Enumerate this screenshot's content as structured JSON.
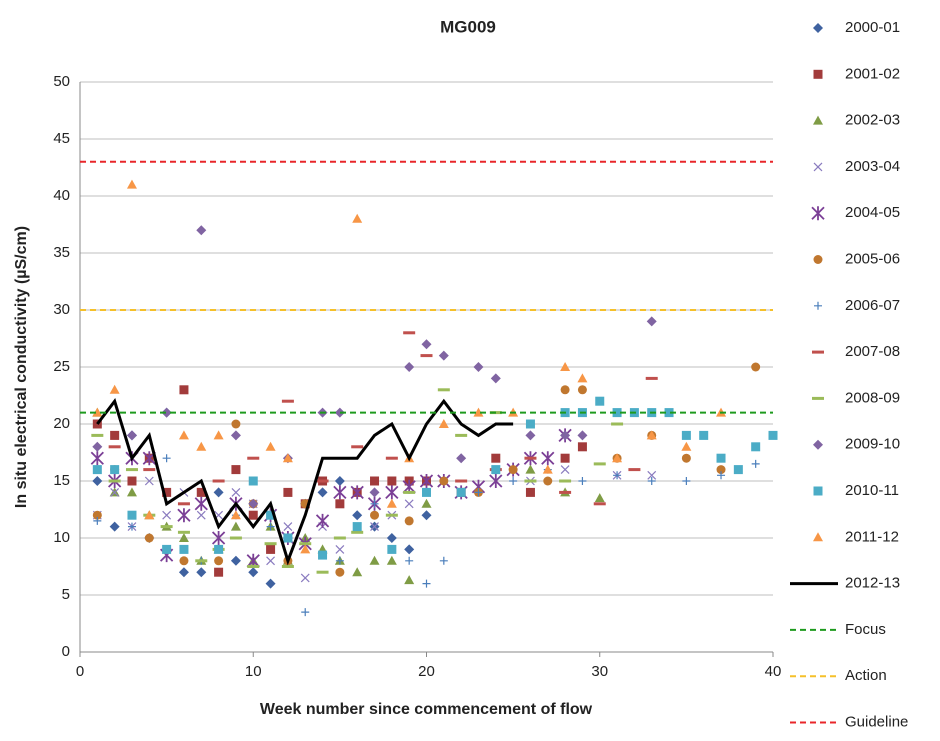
{
  "chart_data": {
    "type": "scatter",
    "title": "MG009",
    "x_label": "Week number since commencement of flow",
    "y_label": "In situ electrical conductivity (µS/cm)",
    "xlim": [
      0,
      40
    ],
    "xticks": [
      0,
      10,
      20,
      30,
      40
    ],
    "ylim": [
      0,
      50
    ],
    "yticks": [
      0,
      5,
      10,
      15,
      20,
      25,
      30,
      35,
      40,
      45,
      50
    ],
    "grid": true,
    "legend": "right",
    "series": [
      {
        "name": "2000-01",
        "marker": "diamond",
        "color": "#3f62a0",
        "x": [
          1,
          2,
          3,
          4,
          5,
          6,
          7,
          8,
          9,
          10,
          11,
          12,
          13,
          14,
          15,
          16,
          17,
          18,
          19,
          20
        ],
        "values": [
          15,
          11,
          19,
          10,
          21,
          7,
          7,
          14,
          8,
          7,
          6,
          10,
          13,
          14,
          15,
          12,
          11,
          10,
          9,
          12
        ]
      },
      {
        "name": "2001-02",
        "marker": "square",
        "color": "#a23b3b",
        "x": [
          1,
          2,
          3,
          4,
          5,
          6,
          7,
          8,
          9,
          10,
          11,
          12,
          13,
          14,
          15,
          16,
          17,
          18,
          19,
          20,
          22,
          24,
          26,
          28,
          29
        ],
        "values": [
          20,
          19,
          15,
          17,
          14,
          23,
          14,
          7,
          16,
          12,
          9,
          14,
          13,
          15,
          13,
          14,
          15,
          15,
          15,
          15,
          14,
          17,
          14,
          17,
          18
        ]
      },
      {
        "name": "2002-03",
        "marker": "triangle",
        "color": "#7f9c45",
        "x": [
          1,
          2,
          3,
          4,
          5,
          6,
          7,
          8,
          9,
          10,
          11,
          12,
          13,
          14,
          15,
          16,
          17,
          18,
          19,
          20,
          26,
          28,
          30
        ],
        "values": [
          21,
          14,
          14,
          12,
          11,
          10,
          8,
          9,
          11,
          8,
          11,
          8,
          10,
          9,
          8,
          7,
          8,
          8,
          6.3,
          13,
          16,
          14,
          13.5
        ]
      },
      {
        "name": "2003-04",
        "marker": "x",
        "color": "#8a7bbf",
        "x": [
          1,
          2,
          3,
          4,
          5,
          6,
          7,
          8,
          9,
          10,
          11,
          12,
          13,
          14,
          15,
          16,
          17,
          18,
          19,
          20,
          22,
          24,
          26,
          28,
          31,
          33
        ],
        "values": [
          12,
          14,
          11,
          15,
          12,
          14,
          12,
          12,
          14,
          13,
          8,
          11,
          6.5,
          11,
          9,
          11,
          11,
          12,
          13,
          15,
          14,
          15,
          15,
          16,
          15.5,
          15.5
        ]
      },
      {
        "name": "2004-05",
        "marker": "asterisk",
        "color": "#7b3f96",
        "x": [
          1,
          2,
          3,
          4,
          5,
          6,
          7,
          8,
          9,
          10,
          11,
          12,
          13,
          14,
          15,
          16,
          17,
          18,
          19,
          20,
          21,
          22,
          23,
          24,
          25,
          26,
          27,
          28
        ],
        "values": [
          17,
          15,
          17,
          17,
          8.5,
          12,
          13,
          10,
          13,
          8,
          12,
          10,
          9.5,
          11.5,
          14,
          14,
          13,
          14,
          14.5,
          15,
          15,
          14,
          14.5,
          15,
          16,
          17,
          17,
          19
        ]
      },
      {
        "name": "2005-06",
        "marker": "circle",
        "color": "#c0772f",
        "x": [
          1,
          2,
          4,
          6,
          8,
          9,
          10,
          12,
          13,
          15,
          17,
          19,
          21,
          23,
          25,
          27,
          28,
          29,
          31,
          33,
          35,
          37,
          39
        ],
        "values": [
          12,
          16,
          10,
          8,
          8,
          20,
          13,
          8,
          13,
          7,
          12,
          11.5,
          15,
          14,
          16,
          15,
          23,
          23,
          17,
          19,
          17,
          16,
          25
        ]
      },
      {
        "name": "2006-07",
        "marker": "plus",
        "color": "#4a7ebb",
        "x": [
          1,
          3,
          5,
          7,
          9,
          11,
          13,
          15,
          17,
          19,
          20,
          21,
          23,
          25,
          27,
          29,
          31,
          33,
          35,
          37,
          39
        ],
        "values": [
          11.5,
          11,
          17,
          8,
          12,
          11,
          3.5,
          8,
          13,
          8,
          6,
          8,
          14,
          15,
          16,
          15,
          15.5,
          15,
          15,
          15.5,
          16.5
        ]
      },
      {
        "name": "2007-08",
        "marker": "dash",
        "color": "#c0504d",
        "x": [
          2,
          4,
          6,
          8,
          10,
          12,
          14,
          16,
          18,
          19,
          20,
          22,
          24,
          26,
          28,
          30,
          32,
          33
        ],
        "values": [
          18,
          16,
          13,
          15,
          17,
          22,
          15,
          18,
          17,
          28,
          26,
          15,
          16,
          17,
          14,
          13,
          16,
          24
        ]
      },
      {
        "name": "2008-09",
        "marker": "dash",
        "color": "#9bbb59",
        "x": [
          1,
          2,
          3,
          4,
          5,
          6,
          7,
          8,
          9,
          10,
          11,
          12,
          13,
          14,
          15,
          16,
          18,
          19,
          21,
          22,
          24,
          26,
          28,
          30,
          31
        ],
        "values": [
          19,
          15,
          16,
          12,
          11,
          10.5,
          8,
          9,
          10,
          7.5,
          9.5,
          7.5,
          9.5,
          7,
          10,
          10.5,
          12,
          14,
          23,
          19,
          21,
          15,
          15,
          16.5,
          20
        ]
      },
      {
        "name": "2009-10",
        "marker": "diamond",
        "color": "#8064a2",
        "x": [
          1,
          3,
          5,
          7,
          9,
          10,
          12,
          14,
          15,
          17,
          19,
          20,
          21,
          22,
          23,
          24,
          26,
          28,
          29,
          33
        ],
        "values": [
          18,
          19,
          21,
          37,
          19,
          13,
          17,
          21,
          21,
          14,
          25,
          27,
          26,
          17,
          25,
          24,
          19,
          19,
          19,
          29
        ]
      },
      {
        "name": "2010-11",
        "marker": "square",
        "color": "#4bacc6",
        "x": [
          1,
          2,
          3,
          5,
          6,
          8,
          10,
          11,
          12,
          14,
          16,
          18,
          20,
          22,
          24,
          26,
          28,
          29,
          30,
          31,
          32,
          33,
          34,
          35,
          36,
          37,
          38,
          39,
          40
        ],
        "values": [
          16,
          16,
          12,
          9,
          9,
          9,
          15,
          12,
          10,
          8.5,
          11,
          9,
          14,
          14,
          16,
          20,
          21,
          21,
          22,
          21,
          21,
          21,
          21,
          19,
          19,
          17,
          16,
          18,
          19
        ]
      },
      {
        "name": "2011-12",
        "marker": "triangle",
        "color": "#f79646",
        "x": [
          1,
          2,
          3,
          4,
          6,
          7,
          8,
          9,
          11,
          12,
          13,
          16,
          18,
          19,
          21,
          23,
          25,
          27,
          28,
          29,
          31,
          33,
          35,
          37
        ],
        "values": [
          21,
          23,
          41,
          12,
          19,
          18,
          19,
          12,
          18,
          17,
          9,
          38,
          13,
          17,
          20,
          21,
          21,
          16,
          25,
          24,
          17,
          19,
          18,
          21
        ]
      },
      {
        "name": "2012-13",
        "marker": "line",
        "color": "#000000",
        "x": [
          1,
          2,
          3,
          4,
          5,
          6,
          7,
          8,
          9,
          10,
          11,
          12,
          13,
          14,
          15,
          16,
          17,
          18,
          19,
          20,
          21,
          22,
          23,
          24,
          25
        ],
        "values": [
          20,
          22,
          17,
          19,
          13,
          14,
          15,
          11,
          13,
          11,
          13,
          8,
          12,
          17,
          17,
          17,
          19,
          20,
          17,
          20,
          22,
          20,
          19,
          20,
          20
        ]
      }
    ],
    "reference_lines": [
      {
        "name": "Focus",
        "value": 21,
        "color": "#1e9a1e"
      },
      {
        "name": "Action",
        "value": 30,
        "color": "#f5c02a"
      },
      {
        "name": "Guideline",
        "value": 43,
        "color": "#e8262a"
      }
    ]
  }
}
